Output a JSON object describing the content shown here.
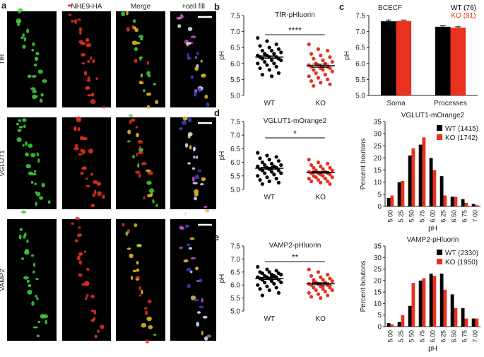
{
  "images": {
    "panel": "a",
    "columns": [
      "NHE9-HA",
      "Merge",
      "+cell fill"
    ],
    "rows": [
      "TfR",
      "VGLUT1",
      "VAMP2"
    ]
  },
  "chart_data": [
    {
      "type": "dot",
      "panel": "b",
      "title": "TfR-pHluorin",
      "ylabel": "pH",
      "categories": [
        "WT",
        "KO"
      ],
      "colors": [
        "#000000",
        "#e8311e"
      ],
      "values": [
        [
          6.8,
          6.7,
          6.6,
          6.55,
          6.5,
          6.45,
          6.4,
          6.4,
          6.35,
          6.3,
          6.3,
          6.25,
          6.25,
          6.2,
          6.2,
          6.2,
          6.15,
          6.15,
          6.1,
          6.1,
          6.05,
          6.0,
          6.0,
          5.95,
          5.9,
          5.85,
          5.8,
          5.7,
          5.65,
          5.6
        ],
        [
          6.6,
          6.45,
          6.4,
          6.3,
          6.25,
          6.2,
          6.15,
          6.1,
          6.05,
          6.0,
          6.0,
          5.95,
          5.95,
          5.9,
          5.9,
          5.85,
          5.85,
          5.8,
          5.8,
          5.75,
          5.7,
          5.65,
          5.6,
          5.55,
          5.5,
          5.45,
          5.4,
          5.35,
          5.3,
          5.9
        ]
      ],
      "means": [
        6.2,
        5.93
      ],
      "sem": [
        0.04,
        0.05
      ],
      "significance": "****",
      "ylim": [
        5.0,
        7.5
      ],
      "yticks": [
        {
          "value": 5,
          "label": "5.0"
        },
        {
          "value": 5.5,
          "label": "5.5"
        },
        {
          "value": 6,
          "label": "6.0"
        },
        {
          "value": 6.5,
          "label": "6.5"
        },
        {
          "value": 7,
          "label": "7.0"
        },
        {
          "value": 7.5,
          "label": "7.5"
        }
      ]
    },
    {
      "type": "bar",
      "panel": "c",
      "title": "BCECF",
      "ylabel": "pH",
      "categories": [
        "Soma",
        "Processes"
      ],
      "legend": "top-right",
      "legend_swatch": false,
      "series": [
        {
          "name": "WT (76)",
          "color": "#000000",
          "values": [
            7.32,
            7.15
          ],
          "errors": [
            0.04,
            0.03
          ]
        },
        {
          "name": "KO (81)",
          "color": "#e8311e",
          "values": [
            7.33,
            7.12
          ],
          "errors": [
            0.03,
            0.03
          ]
        }
      ],
      "ylim": [
        5.0,
        7.5
      ],
      "yticks": [
        {
          "value": 5,
          "label": "5.0"
        },
        {
          "value": 5.5,
          "label": "5.5"
        },
        {
          "value": 6,
          "label": "6.0"
        },
        {
          "value": 6.5,
          "label": "6.5"
        },
        {
          "value": 7,
          "label": "7.0"
        },
        {
          "value": 7.5,
          "label": "7.5"
        }
      ]
    },
    {
      "type": "dot",
      "panel": "d",
      "title": "VGLUT1-mOrange2",
      "ylabel": "pH",
      "categories": [
        "WT",
        "KO"
      ],
      "colors": [
        "#000000",
        "#e8311e"
      ],
      "values": [
        [
          6.35,
          6.25,
          6.2,
          6.15,
          6.1,
          6.05,
          6.0,
          5.95,
          5.9,
          5.9,
          5.85,
          5.85,
          5.8,
          5.8,
          5.75,
          5.75,
          5.7,
          5.7,
          5.65,
          5.6,
          5.6,
          5.55,
          5.5,
          5.45,
          5.4,
          5.35,
          5.3,
          5.25,
          5.2,
          5.8
        ],
        [
          6.1,
          6.0,
          5.95,
          5.9,
          5.85,
          5.8,
          5.8,
          5.75,
          5.7,
          5.7,
          5.65,
          5.65,
          5.6,
          5.6,
          5.6,
          5.55,
          5.55,
          5.5,
          5.5,
          5.45,
          5.45,
          5.4,
          5.4,
          5.35,
          5.3,
          5.3,
          5.25,
          5.2,
          5.65,
          5.75
        ]
      ],
      "means": [
        5.78,
        5.63
      ],
      "sem": [
        0.04,
        0.03
      ],
      "significance": "*",
      "ylim": [
        5.0,
        7.5
      ],
      "yticks": [
        {
          "value": 5,
          "label": "5.0"
        },
        {
          "value": 5.5,
          "label": "5.5"
        },
        {
          "value": 6,
          "label": "6.0"
        },
        {
          "value": 6.5,
          "label": "6.5"
        },
        {
          "value": 7,
          "label": "7.0"
        },
        {
          "value": 7.5,
          "label": "7.5"
        }
      ]
    },
    {
      "type": "bar",
      "title": "VGLUT1-mOrange2",
      "ylabel": "Percent boutons",
      "xlabel": "pH",
      "legend": "top-right",
      "legend_swatch": true,
      "categories": [
        "5.00",
        "5.25",
        "5.50",
        "5.75",
        "6.00",
        "6.25",
        "6.50",
        "6.75",
        "7.00"
      ],
      "series": [
        {
          "name": "WT (1415)",
          "color": "#000000",
          "values": [
            3.5,
            10,
            21,
            25.5,
            20,
            12.5,
            4,
            3,
            1
          ]
        },
        {
          "name": "KO (1742)",
          "color": "#e8311e",
          "values": [
            4.5,
            10.5,
            24,
            28.5,
            15,
            4.5,
            4,
            1.5,
            0.5
          ]
        }
      ],
      "ylim": [
        0,
        35
      ],
      "yticks": [
        0,
        5,
        10,
        15,
        20,
        25,
        30,
        35
      ]
    },
    {
      "type": "dot",
      "panel": "e",
      "title": "VAMP2-pHluorin",
      "ylabel": "pH",
      "categories": [
        "WT",
        "KO"
      ],
      "colors": [
        "#000000",
        "#e8311e"
      ],
      "values": [
        [
          6.7,
          6.6,
          6.55,
          6.5,
          6.5,
          6.45,
          6.45,
          6.4,
          6.4,
          6.35,
          6.35,
          6.3,
          6.3,
          6.3,
          6.25,
          6.25,
          6.2,
          6.2,
          6.15,
          6.1,
          6.1,
          6.05,
          6.0,
          5.95,
          5.9,
          5.85,
          5.8,
          5.7,
          5.6,
          6.3
        ],
        [
          6.6,
          6.5,
          6.4,
          6.35,
          6.3,
          6.25,
          6.2,
          6.2,
          6.15,
          6.1,
          6.1,
          6.05,
          6.05,
          6.0,
          6.0,
          5.95,
          5.9,
          5.9,
          5.85,
          5.8,
          5.8,
          5.75,
          5.7,
          5.65,
          5.6,
          5.55,
          5.5,
          6.0,
          6.15,
          5.95
        ]
      ],
      "means": [
        6.25,
        6.05
      ],
      "sem": [
        0.04,
        0.04
      ],
      "significance": "**",
      "ylim": [
        5.0,
        7.5
      ],
      "yticks": [
        {
          "value": 5,
          "label": "5.0"
        },
        {
          "value": 5.5,
          "label": "5.5"
        },
        {
          "value": 6,
          "label": "6.0"
        },
        {
          "value": 6.5,
          "label": "6.5"
        },
        {
          "value": 7,
          "label": "7.0"
        },
        {
          "value": 7.5,
          "label": "7.5"
        }
      ]
    },
    {
      "type": "bar",
      "title": "VAMP2-pHluorin",
      "ylabel": "Percent boutons",
      "xlabel": "pH",
      "legend": "top-right",
      "legend_swatch": true,
      "categories": [
        "5.00",
        "5.25",
        "5.50",
        "5.75",
        "6.00",
        "6.25",
        "6.50",
        "6.75",
        "7.00"
      ],
      "series": [
        {
          "name": "WT (2330)",
          "color": "#000000",
          "values": [
            1.5,
            2,
            9,
            20,
            23,
            23,
            14,
            8,
            3.5
          ]
        },
        {
          "name": "KO (1950)",
          "color": "#e8311e",
          "values": [
            1,
            5,
            19,
            21,
            22,
            16,
            8,
            3.5,
            3.5
          ]
        }
      ],
      "ylim": [
        0,
        35
      ],
      "yticks": [
        0,
        5,
        10,
        15,
        20,
        25,
        30,
        35
      ]
    }
  ]
}
